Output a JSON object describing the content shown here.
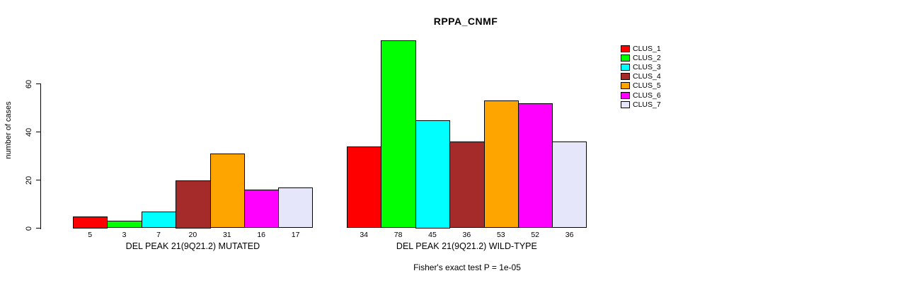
{
  "chart_data": {
    "type": "bar",
    "title": "RPPA_CNMF",
    "ylabel": "number of cases",
    "yticks": [
      0,
      20,
      40,
      60
    ],
    "ylim": [
      0,
      80
    ],
    "grid": false,
    "legend_position": "right",
    "categories": [
      "CLUS_1",
      "CLUS_2",
      "CLUS_3",
      "CLUS_4",
      "CLUS_5",
      "CLUS_6",
      "CLUS_7"
    ],
    "legend": [
      {
        "label": "CLUS_1",
        "color": "#FF0000"
      },
      {
        "label": "CLUS_2",
        "color": "#00FF00"
      },
      {
        "label": "CLUS_3",
        "color": "#00FFFF"
      },
      {
        "label": "CLUS_4",
        "color": "#A52A2A"
      },
      {
        "label": "CLUS_5",
        "color": "#FFA500"
      },
      {
        "label": "CLUS_6",
        "color": "#FF00FF"
      },
      {
        "label": "CLUS_7",
        "color": "#E6E6FA"
      }
    ],
    "groups": [
      {
        "label": "DEL PEAK 21(9Q21.2) MUTATED",
        "values": [
          5,
          3,
          7,
          20,
          31,
          16,
          17
        ]
      },
      {
        "label": "DEL PEAK 21(9Q21.2) WILD-TYPE",
        "values": [
          34,
          78,
          45,
          36,
          53,
          52,
          36
        ]
      }
    ],
    "annotation": "Fisher's exact test P = 1e-05"
  }
}
